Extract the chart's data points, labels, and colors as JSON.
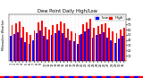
{
  "title": "Dew Point Daily High/Low",
  "ylabel_left": "Milwaukee Weather",
  "background_color": "#ffffff",
  "plot_bg_color": "#ffffff",
  "grid_color": "#aaaaaa",
  "bar_width": 0.45,
  "days": [
    1,
    2,
    3,
    4,
    5,
    6,
    7,
    8,
    9,
    10,
    11,
    12,
    13,
    14,
    15,
    16,
    17,
    18,
    19,
    20,
    21,
    22,
    23,
    24,
    25,
    26,
    27,
    28,
    29,
    30,
    31
  ],
  "high_values": [
    68,
    72,
    75,
    65,
    55,
    50,
    58,
    74,
    78,
    65,
    60,
    68,
    71,
    76,
    72,
    62,
    56,
    53,
    50,
    70,
    74,
    80,
    63,
    67,
    70,
    72,
    63,
    57,
    53,
    60,
    64
  ],
  "low_values": [
    48,
    52,
    55,
    44,
    36,
    32,
    40,
    54,
    58,
    48,
    42,
    50,
    53,
    58,
    54,
    45,
    40,
    37,
    33,
    52,
    57,
    62,
    45,
    50,
    52,
    55,
    45,
    39,
    35,
    43,
    48
  ],
  "high_color": "#ff0000",
  "low_color": "#0000ff",
  "ylim": [
    0,
    90
  ],
  "ytick_values": [
    10,
    20,
    30,
    40,
    50,
    60,
    70,
    80
  ],
  "ytick_labels": [
    "10",
    "20",
    "30",
    "40",
    "50",
    "60",
    "70",
    "80"
  ],
  "legend_high": "High",
  "legend_low": "Low",
  "title_fontsize": 3.8,
  "tick_fontsize": 2.5,
  "legend_fontsize": 3.0,
  "xband_colors": [
    "#ff0000",
    "#0000ff"
  ],
  "n_days": 31
}
